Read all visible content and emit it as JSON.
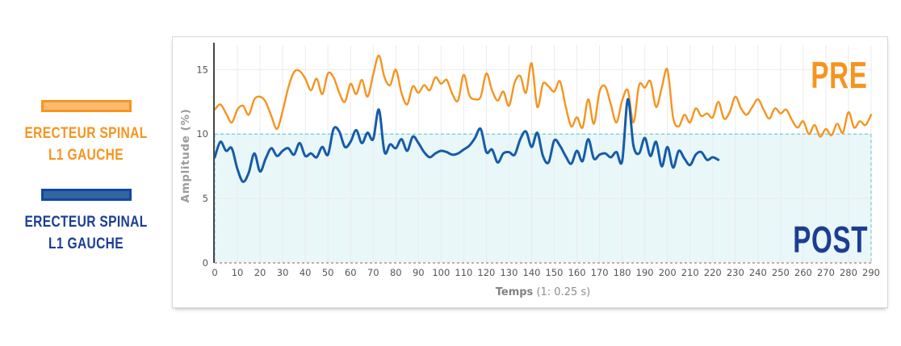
{
  "legend": {
    "items": [
      {
        "id": "pre",
        "line1": "ERECTEUR SPINAL",
        "line2": "L1 GAUCHE",
        "text_color": "#f7941d",
        "swatch_fill": "#fbb971",
        "swatch_border": "#f7941e"
      },
      {
        "id": "post",
        "line1": "ERECTEUR SPINAL",
        "line2": "L1 GAUCHE",
        "text_color": "#1b3e94",
        "swatch_fill": "#33669f",
        "swatch_border": "#0f48a6"
      }
    ]
  },
  "chart_data": {
    "type": "line",
    "title": "",
    "xlabel_bold": "Temps",
    "xlabel_rest": " (1: 0.25 s)",
    "ylabel": "Amplitude (%)",
    "xlim": [
      0,
      290
    ],
    "ylim": [
      0,
      16.9
    ],
    "x_ticks": [
      0,
      10,
      20,
      30,
      40,
      50,
      60,
      70,
      80,
      90,
      100,
      110,
      120,
      130,
      140,
      150,
      160,
      170,
      180,
      190,
      200,
      210,
      220,
      230,
      240,
      250,
      260,
      270,
      280,
      290
    ],
    "y_ticks": [
      0,
      5,
      10,
      15
    ],
    "grid": true,
    "colors": {
      "grid": "#ebebeb",
      "axis": "#474747",
      "tick_text": "#555555"
    },
    "threshold_band": {
      "y_from": 0,
      "y_to": 10,
      "x_from": 0,
      "x_to": 290,
      "fill": "rgba(116,204,215,0.16)",
      "border_color": "#74ccd7",
      "bottom_border_color": "#b4776b"
    },
    "annotations": [
      {
        "text": "PRE",
        "color": "#f7941d",
        "position": "top-right"
      },
      {
        "text": "POST",
        "color": "#1b3e94",
        "position": "bottom-right"
      }
    ],
    "series": [
      {
        "name": "PRE - Erecteur spinal L1 gauche",
        "color": "#f5941f",
        "width": 2.4,
        "x_start": 0,
        "x_step": 2.5,
        "values": [
          11.9,
          12.3,
          11.6,
          10.9,
          11.9,
          12.2,
          11.5,
          12.7,
          12.9,
          12.5,
          11.4,
          10.4,
          11.8,
          13.6,
          14.8,
          14.9,
          14.3,
          13.4,
          14.3,
          13.1,
          14.7,
          14.4,
          13.2,
          12.5,
          13.9,
          13.1,
          14.2,
          12.9,
          14.6,
          16.1,
          14.4,
          13.8,
          15.0,
          13.2,
          12.3,
          13.7,
          13.2,
          13.8,
          13.4,
          14.4,
          13.9,
          14.2,
          13.1,
          12.6,
          14.6,
          13.0,
          12.7,
          12.9,
          14.7,
          13.4,
          12.6,
          13.3,
          12.2,
          14.0,
          14.5,
          13.2,
          15.5,
          12.1,
          13.9,
          13.7,
          13.3,
          14.1,
          12.2,
          10.6,
          11.3,
          10.5,
          12.7,
          10.8,
          13.3,
          13.7,
          12.3,
          10.9,
          12.6,
          13.4,
          10.9,
          13.8,
          13.6,
          14.1,
          12.1,
          13.6,
          15.0,
          11.3,
          10.6,
          11.5,
          10.9,
          12.0,
          11.4,
          11.6,
          11.3,
          12.5,
          11.2,
          11.7,
          12.9,
          12.0,
          11.5,
          12.1,
          12.7,
          11.9,
          11.2,
          12.0,
          11.6,
          11.9,
          11.1,
          10.5,
          11.0,
          10.0,
          10.7,
          9.8,
          10.4,
          9.9,
          10.8,
          10.1,
          11.7,
          10.5,
          11.0,
          10.7,
          11.5
        ]
      },
      {
        "name": "POST - Erecteur spinal L1 gauche",
        "color": "#155ca9",
        "width": 3,
        "x_start": 0,
        "x_step": 2.5,
        "values": [
          8.2,
          9.4,
          8.7,
          8.9,
          7.3,
          6.3,
          7.0,
          8.5,
          7.1,
          8.1,
          8.9,
          8.3,
          8.7,
          8.9,
          8.4,
          9.3,
          8.3,
          8.5,
          8.2,
          9.0,
          8.4,
          10.4,
          10.2,
          9.0,
          9.4,
          10.3,
          9.3,
          10.1,
          9.6,
          11.9,
          8.6,
          9.2,
          8.9,
          9.6,
          8.7,
          9.8,
          9.3,
          8.6,
          8.2,
          8.5,
          8.7,
          8.6,
          8.4,
          8.5,
          8.8,
          9.1,
          9.7,
          10.4,
          8.6,
          8.8,
          7.8,
          8.5,
          8.6,
          8.4,
          9.6,
          10.2,
          9.0,
          10.1,
          8.3,
          7.8,
          9.5,
          9.1,
          8.3,
          7.7,
          8.7,
          7.9,
          9.6,
          8.1,
          8.4,
          8.5,
          8.2,
          8.6,
          7.9,
          12.7,
          9.1,
          8.5,
          9.7,
          8.3,
          9.4,
          7.5,
          9.0,
          7.4,
          8.7,
          8.1,
          7.6,
          8.4,
          8.6,
          8.0,
          8.2,
          8.0
        ]
      }
    ]
  }
}
